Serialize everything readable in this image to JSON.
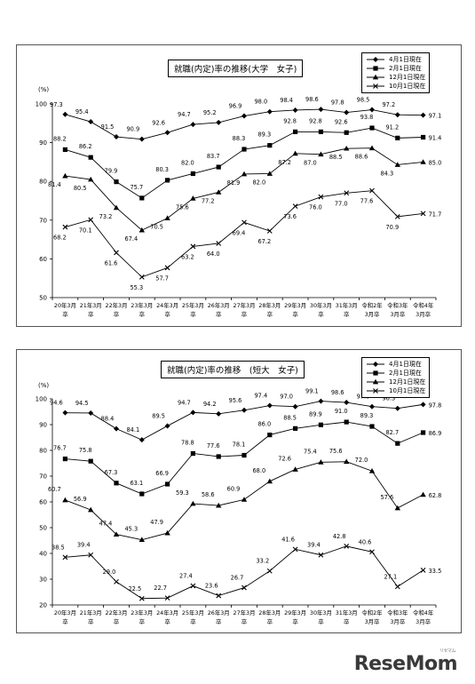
{
  "logo": {
    "text": "ReseMom",
    "subtext": "リセマム"
  },
  "x_categories": [
    "20年3月\n卒",
    "21年3月\n卒",
    "22年3月\n卒",
    "23年3月\n卒",
    "24年3月\n卒",
    "25年3月\n卒",
    "26年3月\n卒",
    "27年3月\n卒",
    "28年3月\n卒",
    "29年3月\n卒",
    "30年3月\n卒",
    "31年3月\n卒",
    "令和2年\n3月卒",
    "令和3年\n3月卒",
    "令和4年\n3月卒"
  ],
  "chart_data": [
    {
      "type": "line",
      "title": "就職(内定)率の推移(大学　女子)",
      "ylabel": "(%)",
      "ylim": [
        50,
        100
      ],
      "yticks": [
        50,
        60,
        70,
        80,
        90,
        100
      ],
      "legend_placement": "top-right",
      "series": [
        {
          "name": "4月1日現在",
          "marker": "diamond",
          "values": [
            97.3,
            95.4,
            91.5,
            90.9,
            92.6,
            94.7,
            95.2,
            96.9,
            98.0,
            98.4,
            98.6,
            97.8,
            98.5,
            97.2,
            97.1
          ]
        },
        {
          "name": "2月1日現在",
          "marker": "square",
          "values": [
            88.2,
            86.2,
            79.9,
            75.7,
            80.3,
            82.0,
            83.7,
            88.3,
            89.3,
            92.8,
            92.8,
            92.6,
            93.8,
            91.2,
            91.4
          ]
        },
        {
          "name": "12月1日現在",
          "marker": "triangle",
          "values": [
            81.4,
            80.5,
            73.2,
            67.4,
            70.5,
            75.6,
            77.2,
            81.9,
            82.0,
            87.2,
            87.0,
            88.5,
            88.6,
            84.3,
            85.0
          ]
        },
        {
          "name": "10月1日現在",
          "marker": "x",
          "values": [
            68.2,
            70.1,
            61.6,
            55.3,
            57.7,
            63.2,
            64.0,
            69.4,
            67.2,
            73.6,
            76.0,
            77.0,
            77.6,
            70.9,
            71.7
          ]
        }
      ]
    },
    {
      "type": "line",
      "title": "就職(内定)率の推移　(短大　女子)",
      "ylabel": "(%)",
      "ylim": [
        20,
        100
      ],
      "yticks": [
        20,
        30,
        40,
        50,
        60,
        70,
        80,
        90,
        100
      ],
      "legend_placement": "top-right",
      "series": [
        {
          "name": "4月1日現在",
          "marker": "diamond",
          "values": [
            94.6,
            94.5,
            88.4,
            84.1,
            89.5,
            94.7,
            94.2,
            95.6,
            97.4,
            97.0,
            99.1,
            98.6,
            97.0,
            96.3,
            97.8
          ]
        },
        {
          "name": "2月1日現在",
          "marker": "square",
          "values": [
            76.7,
            75.8,
            67.3,
            63.1,
            66.9,
            78.8,
            77.6,
            78.1,
            86.0,
            88.5,
            89.9,
            91.0,
            89.3,
            82.7,
            86.9
          ]
        },
        {
          "name": "12月1日現在",
          "marker": "triangle",
          "values": [
            60.7,
            56.9,
            47.4,
            45.3,
            47.9,
            59.3,
            58.6,
            60.9,
            68.0,
            72.6,
            75.4,
            75.6,
            72.0,
            57.6,
            62.8
          ]
        },
        {
          "name": "10月1日現在",
          "marker": "x",
          "values": [
            38.5,
            39.4,
            29.0,
            22.5,
            22.7,
            27.4,
            23.6,
            26.7,
            33.2,
            41.6,
            39.4,
            42.8,
            40.6,
            27.1,
            33.5
          ]
        }
      ]
    }
  ]
}
